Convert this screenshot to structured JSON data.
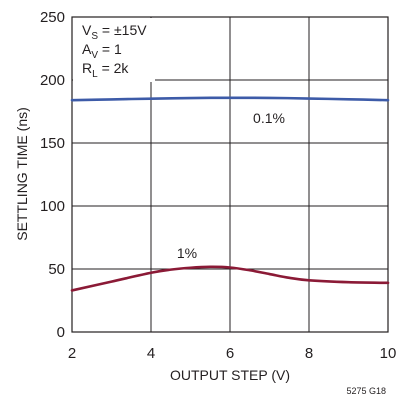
{
  "chart_data": {
    "type": "line",
    "xlabel": "OUTPUT STEP (V)",
    "ylabel": "SETTLING TIME (ns)",
    "xlim": [
      2,
      10
    ],
    "ylim": [
      0,
      250
    ],
    "x_ticks": [
      "2",
      "4",
      "6",
      "8",
      "10"
    ],
    "y_ticks": [
      "0",
      "50",
      "100",
      "150",
      "200",
      "250"
    ],
    "grid": true,
    "conditions": [
      {
        "main": "V",
        "sub": "S",
        "rest": " = ±15V"
      },
      {
        "main": "A",
        "sub": "V",
        "rest": " = 1"
      },
      {
        "main": "R",
        "sub": "L",
        "rest": " = 2k"
      }
    ],
    "series": [
      {
        "name": "0.1%",
        "color": "#3d5ba8",
        "x": [
          2,
          3,
          4,
          5,
          6,
          7,
          8,
          9,
          10
        ],
        "values": [
          184,
          184.6,
          185.2,
          185.7,
          185.9,
          185.8,
          185.3,
          184.7,
          184
        ]
      },
      {
        "name": "1%",
        "color": "#8b1a36",
        "x": [
          2,
          3,
          4,
          4.5,
          5,
          5.5,
          6,
          6.5,
          7,
          7.5,
          8,
          9,
          10
        ],
        "values": [
          33,
          40,
          47,
          49.5,
          51,
          51.7,
          51.2,
          49,
          46,
          43,
          41,
          39.5,
          39
        ]
      }
    ],
    "footnote": "5275 G18"
  }
}
